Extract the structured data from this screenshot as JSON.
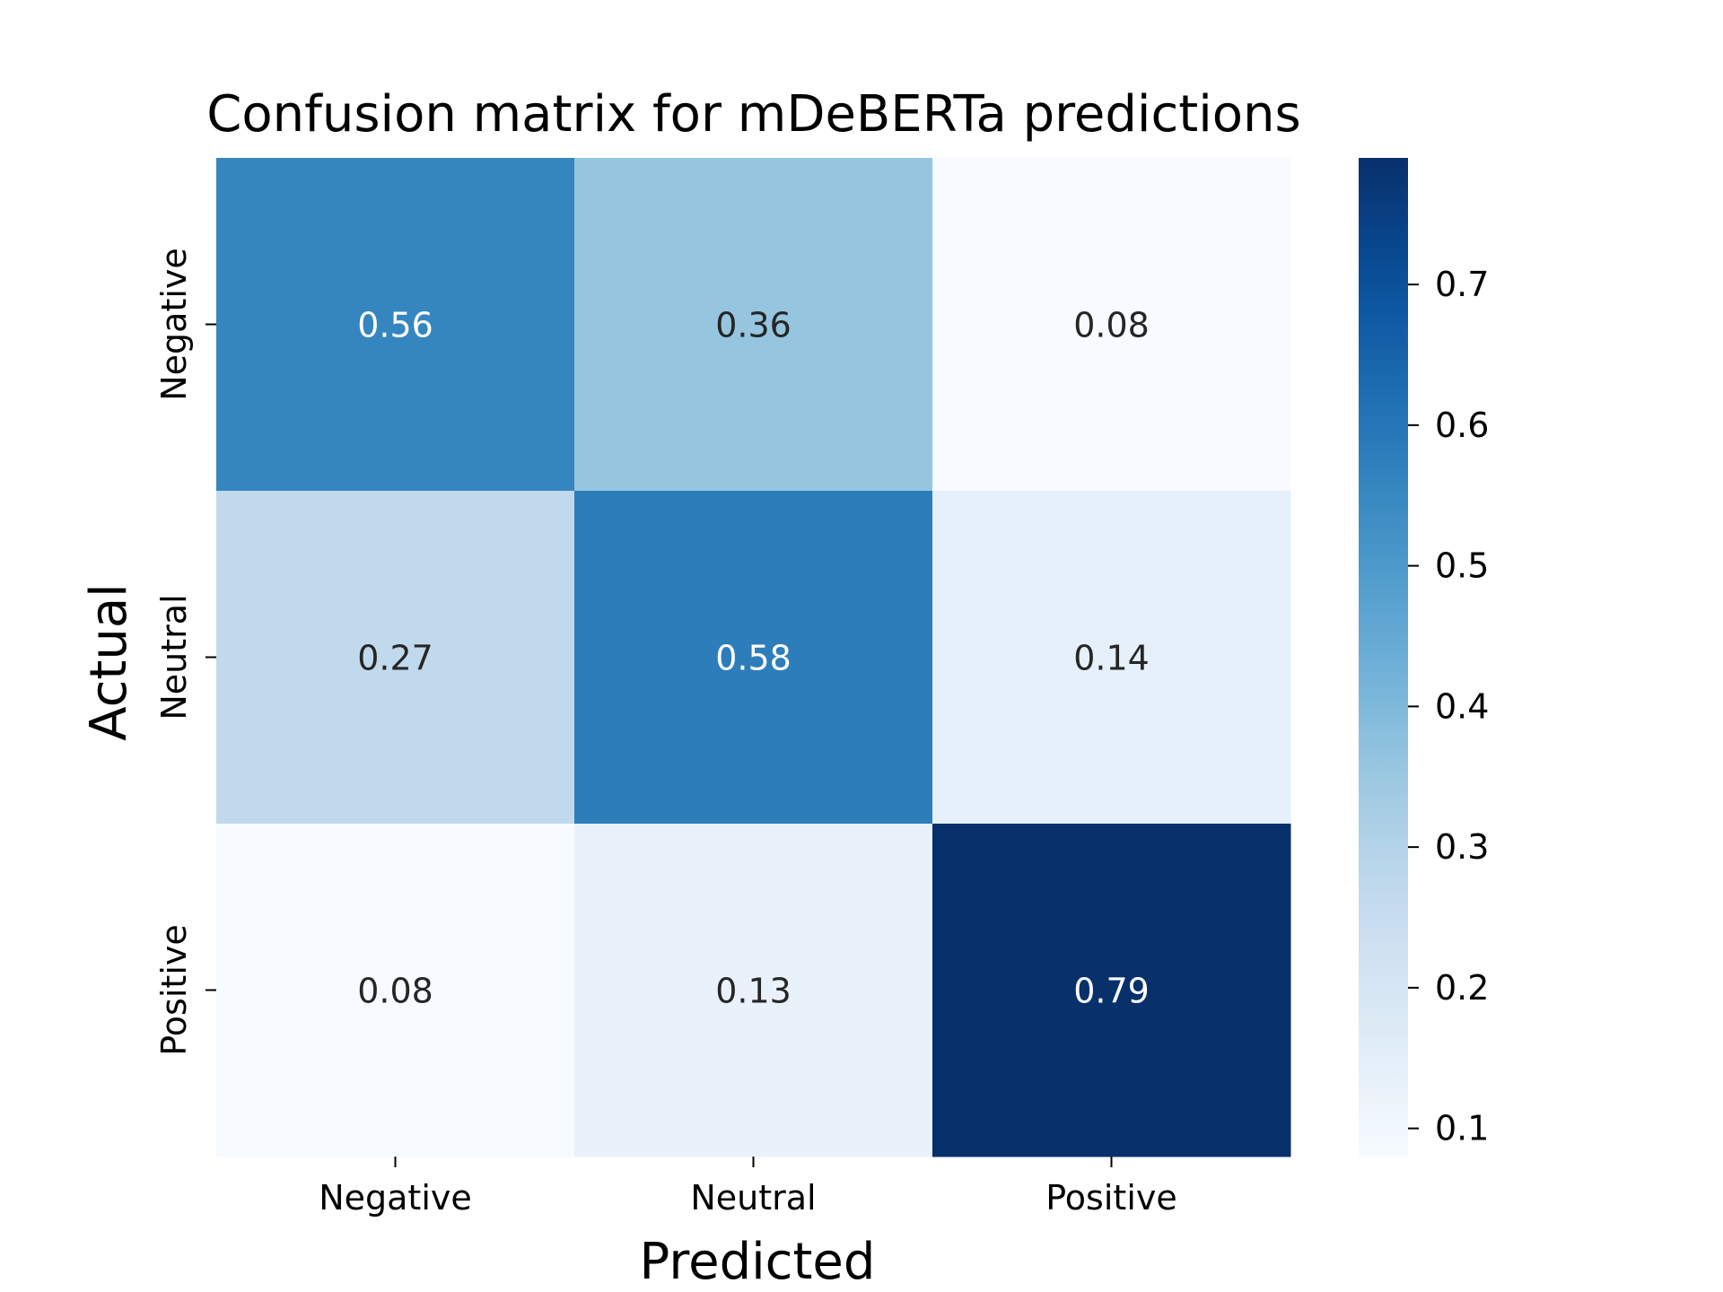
{
  "chart_data": {
    "type": "heatmap",
    "title": "Confusion matrix for mDeBERTa predictions",
    "xlabel": "Predicted",
    "ylabel": "Actual",
    "x_categories": [
      "Negative",
      "Neutral",
      "Positive"
    ],
    "y_categories": [
      "Negative",
      "Neutral",
      "Positive"
    ],
    "values": [
      [
        0.56,
        0.36,
        0.08
      ],
      [
        0.27,
        0.58,
        0.14
      ],
      [
        0.08,
        0.13,
        0.79
      ]
    ],
    "value_labels": [
      [
        "0.56",
        "0.36",
        "0.08"
      ],
      [
        "0.27",
        "0.58",
        "0.14"
      ],
      [
        "0.08",
        "0.13",
        "0.79"
      ]
    ],
    "colormap": "Blues",
    "color_range": [
      0.08,
      0.79
    ],
    "colorbar": {
      "ticks": [
        0.1,
        0.2,
        0.3,
        0.4,
        0.5,
        0.6,
        0.7
      ],
      "tick_labels": [
        "0.1",
        "0.2",
        "0.3",
        "0.4",
        "0.5",
        "0.6",
        "0.7"
      ]
    },
    "annotation_colors": {
      "light": "#ffffff",
      "dark": "#262626"
    },
    "grid": false,
    "legend": "colorbar-right"
  }
}
